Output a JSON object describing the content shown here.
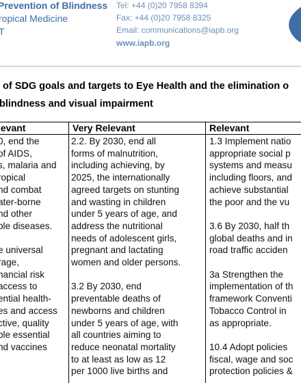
{
  "header": {
    "org": [
      "Prevention of Blindness",
      "ropical Medicine",
      "T"
    ],
    "contact": [
      "Tel:  +44 (0)20 7958 8394",
      "Fax:  +44 (0)20 7958 8325",
      "Email: communications@iapb.org",
      "www.iapb.org"
    ]
  },
  "title": [
    "of SDG goals and targets to Eye Health and the elimination o",
    "blindness and visual impairment"
  ],
  "table": {
    "headers": [
      "levant",
      "Very Relevant",
      "Relevant"
    ],
    "columns": [
      [
        [
          "0, end the",
          "of AIDS,",
          "s, malaria and",
          "ropical",
          "nd combat",
          "ater-borne",
          "nd other",
          "ble diseases."
        ],
        [
          "e universal",
          "rage,",
          "nancial risk",
          "access to",
          "ential health-",
          "es and access",
          "ctive, quality",
          "ble essential",
          "nd vaccines"
        ]
      ],
      [
        [
          "2.2. By 2030, end all",
          "forms of malnutrition,",
          "including achieving, by",
          "2025, the internationally",
          "agreed targets  on stunting",
          "and wasting in children",
          "under 5 years of age, and",
          "address the nutritional",
          "needs of adolescent girls,",
          "pregnant and lactating",
          "women and older persons."
        ],
        [
          "3.2 By 2030, end",
          "preventable deaths of",
          "newborns and children",
          "under 5 years of age, with",
          "all countries aiming to",
          "reduce neonatal mortality",
          "to at least as low as 12",
          "per 1000 live births and"
        ]
      ],
      [
        [
          "1.3 Implement natio",
          "appropriate social p",
          "systems and measu",
          "including floors, and",
          "achieve substantial",
          "the poor and the vu"
        ],
        [
          "3.6 By 2030, half th",
          "global deaths and in",
          "road traffic acciden"
        ],
        [
          "3a Strengthen the",
          "implementation of th",
          "framework Conventi",
          "Tobacco Control in",
          "as appropriate."
        ],
        [
          "10.4 Adopt policies",
          "fiscal, wage and soc",
          "protection policies &"
        ]
      ]
    ]
  }
}
